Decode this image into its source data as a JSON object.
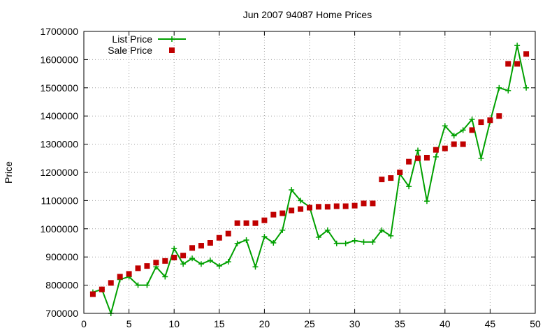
{
  "chart_data": {
    "type": "line",
    "title": "Jun 2007 94087 Home Prices",
    "xlabel": "",
    "ylabel": "Price",
    "xlim": [
      0,
      50
    ],
    "ylim": [
      700000,
      1700000
    ],
    "xticks": [
      "0",
      "5",
      "10",
      "15",
      "20",
      "25",
      "30",
      "35",
      "40",
      "45",
      "50"
    ],
    "yticks": [
      "700000",
      "800000",
      "900000",
      "1000000",
      "1100000",
      "1200000",
      "1300000",
      "1400000",
      "1500000",
      "1600000",
      "1700000"
    ],
    "grid": true,
    "legend_position": "top-left",
    "series": [
      {
        "name": "List Price",
        "style": "linespoints",
        "marker": "plus",
        "color": "#00a000",
        "x": [
          1,
          2,
          3,
          4,
          5,
          6,
          7,
          8,
          9,
          10,
          11,
          12,
          13,
          14,
          15,
          16,
          17,
          18,
          19,
          20,
          21,
          22,
          23,
          24,
          25,
          26,
          27,
          28,
          29,
          30,
          31,
          32,
          33,
          34,
          35,
          36,
          37,
          38,
          39,
          40,
          41,
          42,
          43,
          44,
          45,
          46,
          47,
          48,
          49
        ],
        "y": [
          775000,
          785000,
          700000,
          820000,
          830000,
          800000,
          800000,
          865000,
          830000,
          930000,
          875000,
          895000,
          875000,
          888000,
          868000,
          883000,
          948000,
          960000,
          865000,
          972000,
          950000,
          995000,
          1138000,
          1100000,
          1078000,
          970000,
          995000,
          948000,
          948000,
          958000,
          953000,
          953000,
          995000,
          975000,
          1195000,
          1150000,
          1278000,
          1098000,
          1255000,
          1365000,
          1330000,
          1350000,
          1388000,
          1250000,
          1380000,
          1500000,
          1490000,
          1650000,
          1500000
        ]
      },
      {
        "name": "Sale Price",
        "style": "points",
        "marker": "square",
        "color": "#c00000",
        "x": [
          1,
          2,
          3,
          4,
          5,
          6,
          7,
          8,
          9,
          10,
          11,
          12,
          13,
          14,
          15,
          16,
          17,
          18,
          19,
          20,
          21,
          22,
          23,
          24,
          25,
          26,
          27,
          28,
          29,
          30,
          31,
          32,
          33,
          34,
          35,
          36,
          37,
          38,
          39,
          40,
          41,
          42,
          43,
          44,
          45,
          46,
          47,
          48,
          49
        ],
        "y": [
          768000,
          785000,
          808000,
          830000,
          840000,
          860000,
          868000,
          880000,
          886000,
          898000,
          905000,
          932000,
          940000,
          950000,
          968000,
          983000,
          1020000,
          1020000,
          1020000,
          1030000,
          1050000,
          1055000,
          1065000,
          1070000,
          1075000,
          1078000,
          1078000,
          1080000,
          1080000,
          1082000,
          1090000,
          1090000,
          1175000,
          1180000,
          1200000,
          1238000,
          1250000,
          1252000,
          1280000,
          1285000,
          1300000,
          1300000,
          1350000,
          1378000,
          1385000,
          1400000,
          1585000,
          1585000,
          1620000
        ]
      }
    ]
  }
}
